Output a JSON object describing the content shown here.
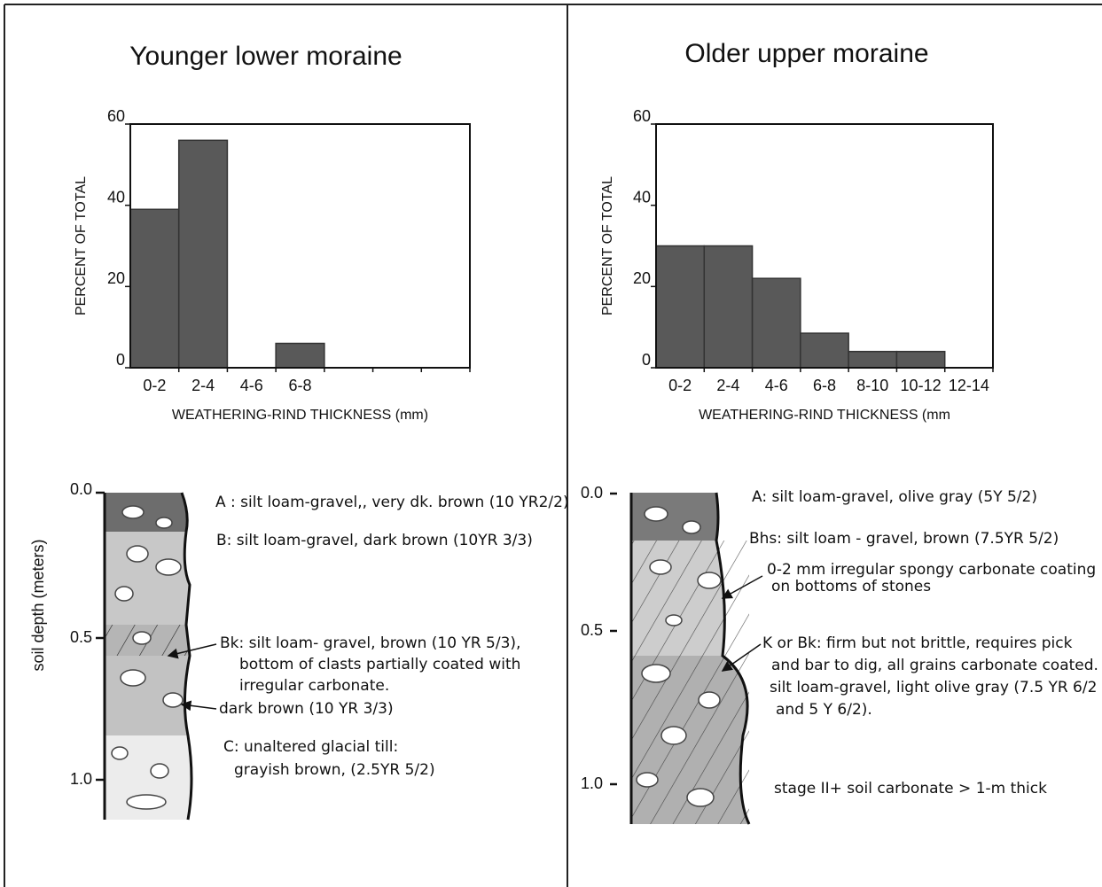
{
  "chart_data": [
    {
      "type": "bar",
      "title": "Younger lower moraine",
      "categories": [
        "0-2",
        "2-4",
        "4-6",
        "6-8",
        null,
        null,
        null
      ],
      "values": [
        39,
        56,
        0,
        6,
        0,
        0,
        0
      ],
      "color": "#595959",
      "ylim": [
        0,
        60
      ],
      "yticks": [
        0,
        20,
        40,
        60
      ],
      "ylabel": "PERCENT OF TOTAL",
      "xlabel": "WEATHERING-RIND THICKNESS (mm)"
    },
    {
      "type": "bar",
      "title": "Older upper moraine",
      "categories": [
        "0-2",
        "2-4",
        "4-6",
        "6-8",
        "8-10",
        "10-12",
        "12-14"
      ],
      "values": [
        30,
        30,
        22,
        8.5,
        4,
        4,
        0
      ],
      "color": "#595959",
      "ylim": [
        0,
        60
      ],
      "yticks": [
        0,
        20,
        40,
        60
      ],
      "ylabel": "PERCENT OF TOTAL",
      "xlabel": "WEATHERING-RIND THICKNESS (mm"
    }
  ],
  "profiles": [
    {
      "ylabel": "soil depth (meters)",
      "depth_labels": [
        "0.0",
        "0.5",
        "1.0"
      ],
      "annotations": [
        "A : silt loam-gravel,, very dk. brown (10 YR2/2)",
        "B: silt loam-gravel, dark brown (10YR 3/3)",
        "Bk:  silt loam- gravel, brown (10 YR 5/3),",
        "bottom of clasts partially coated with",
        "irregular carbonate.",
        "dark brown (10 YR 3/3)",
        "C:  unaltered glacial till:",
        "grayish brown, (2.5YR 5/2)"
      ]
    },
    {
      "depth_labels": [
        "0.0",
        "0.5",
        "1.0"
      ],
      "annotations": [
        "A:  silt loam-gravel, olive gray (5Y 5/2)",
        "Bhs: silt loam - gravel, brown (7.5YR 5/2)",
        "0-2 mm irregular spongy carbonate coating",
        "on bottoms of stones",
        "K or Bk:  firm but not brittle, requires pick",
        "and bar to dig, all grains carbonate coated.",
        "silt loam-gravel, light olive gray (7.5 YR 6/2",
        "and 5 Y 6/2).",
        "stage II+ soil carbonate > 1-m thick"
      ]
    }
  ]
}
